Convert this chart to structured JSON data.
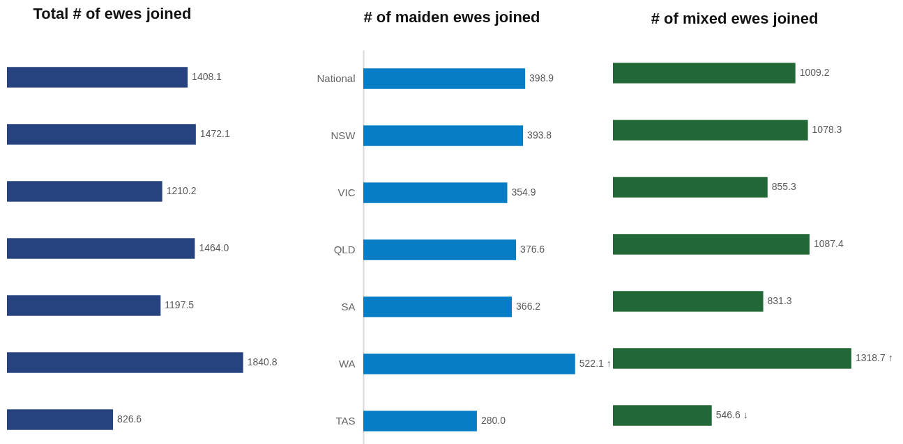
{
  "chart_data": [
    {
      "type": "bar",
      "orientation": "horizontal",
      "title": "Total # of ewes joined",
      "categories": [
        null,
        null,
        null,
        null,
        null,
        null,
        null
      ],
      "values": [
        1408.1,
        1472.1,
        1210.2,
        1464.0,
        1197.5,
        1840.8,
        826.6
      ],
      "value_labels": [
        "1408.1",
        "1472.1",
        "1210.2",
        "1464.0",
        "1197.5",
        "1840.8",
        "826.6"
      ],
      "color": "#26437f",
      "tick_labels": false
    },
    {
      "type": "bar",
      "orientation": "horizontal",
      "title": "# of maiden ewes joined",
      "categories": [
        "National",
        "NSW",
        "VIC",
        "QLD",
        "SA",
        "WA",
        "TAS"
      ],
      "values": [
        398.9,
        393.8,
        354.9,
        376.6,
        366.2,
        522.1,
        280.0
      ],
      "value_labels": [
        "398.9",
        "393.8",
        "354.9",
        "376.6",
        "366.2",
        "522.1 ↑",
        "280.0"
      ],
      "color": "#067dc4",
      "tick_labels": "y"
    },
    {
      "type": "bar",
      "orientation": "horizontal",
      "title": "# of mixed ewes joined",
      "categories": [
        null,
        null,
        null,
        null,
        null,
        null,
        null
      ],
      "values": [
        1009.2,
        1078.3,
        855.3,
        1087.4,
        831.3,
        1318.7,
        546.6
      ],
      "value_labels": [
        "1009.2",
        "1078.3",
        "855.3",
        "1087.4",
        "831.3",
        "1318.7 ↑",
        "546.6 ↓"
      ],
      "color": "#226836",
      "tick_labels": false
    }
  ]
}
